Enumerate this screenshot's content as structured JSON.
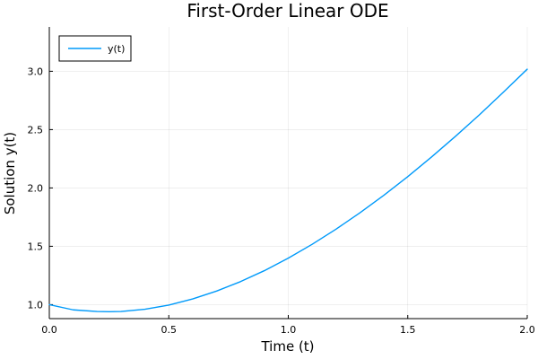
{
  "chart_data": {
    "type": "line",
    "title": "First-Order Linear ODE",
    "xlabel": "Time (t)",
    "ylabel": "Solution y(t)",
    "xlim": [
      0.0,
      2.0
    ],
    "ylim": [
      0.88,
      3.38
    ],
    "xticks": [
      0.0,
      0.5,
      1.0,
      1.5,
      2.0
    ],
    "xtick_labels": [
      "0.0",
      "0.5",
      "1.0",
      "1.5",
      "2.0"
    ],
    "yticks": [
      1.0,
      1.5,
      2.0,
      2.5,
      3.0
    ],
    "ytick_labels": [
      "1.0",
      "1.5",
      "2.0",
      "2.5",
      "3.0"
    ],
    "grid": true,
    "legend": {
      "placement": "top-left",
      "entries": [
        "y(t)"
      ]
    },
    "series": [
      {
        "name": "y(t)",
        "color": "#009AFA",
        "x": [
          0.0,
          0.1,
          0.2,
          0.25,
          0.3,
          0.4,
          0.5,
          0.6,
          0.7,
          0.8,
          0.9,
          1.0,
          1.1,
          1.2,
          1.3,
          1.4,
          1.5,
          1.6,
          1.7,
          1.8,
          1.9,
          2.0
        ],
        "y": [
          1.0,
          0.955,
          0.941,
          0.939,
          0.941,
          0.96,
          0.996,
          1.049,
          1.116,
          1.197,
          1.291,
          1.398,
          1.517,
          1.647,
          1.787,
          1.937,
          2.097,
          2.266,
          2.443,
          2.627,
          2.82,
          3.018
        ]
      }
    ]
  }
}
